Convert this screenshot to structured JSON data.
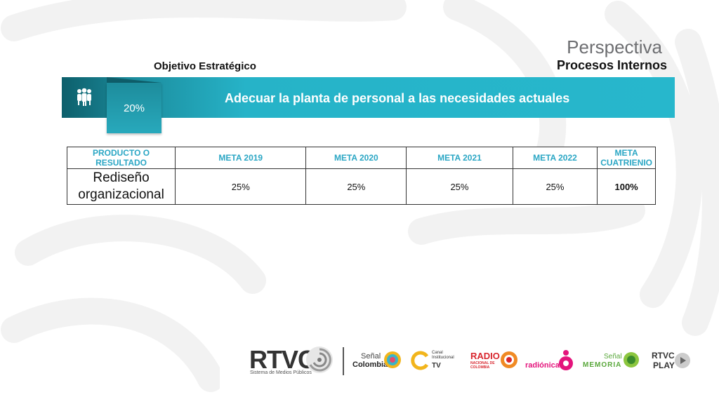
{
  "header": {
    "title": "Perspectiva",
    "subtitle": "Procesos Internos"
  },
  "objective": {
    "label": "Objetivo Estratégico",
    "percent": "20%",
    "text": "Adecuar la planta de personal a las necesidades actuales"
  },
  "table": {
    "headers": [
      "PRODUCTO O RESULTADO",
      "META 2019",
      "META 2020",
      "META 2021",
      "META 2022",
      "META CUATRIENIO"
    ],
    "rows": [
      [
        "Rediseño organizacional",
        "25%",
        "25%",
        "25%",
        "25%",
        "100%"
      ]
    ]
  },
  "footer": {
    "logos": [
      {
        "main": "RTVC",
        "sub": "Sistema de Medios Públicos"
      },
      {
        "main": "Señal",
        "sub": "Colombia"
      },
      {
        "main": "Canal Institucional",
        "sub": "TV"
      },
      {
        "main": "RADIO",
        "sub": "NACIONAL DE COLOMBIA"
      },
      {
        "main": "radiónica",
        "sub": ""
      },
      {
        "main": "Señal",
        "sub": "MEMORIA"
      },
      {
        "main": "RTVC",
        "sub": "PLAY"
      }
    ]
  },
  "colors": {
    "accent": "#27b7cc",
    "dark_teal": "#0d5f6b",
    "header_text": "#2aa6c4"
  }
}
